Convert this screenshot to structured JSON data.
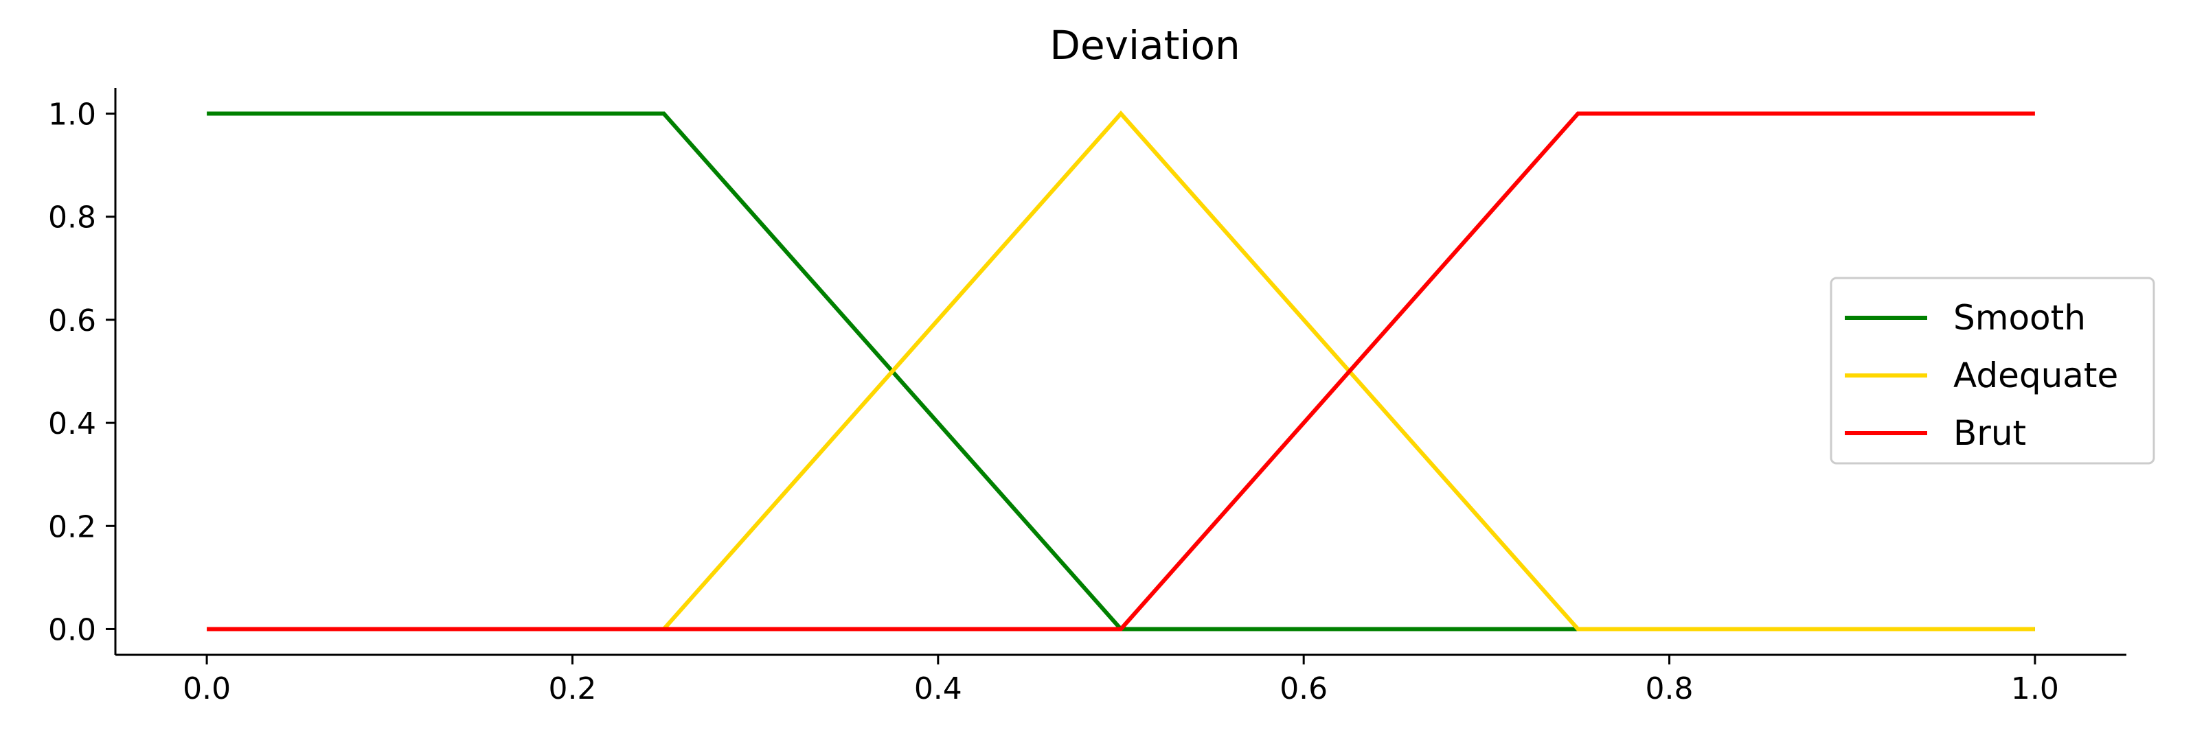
{
  "chart_data": {
    "type": "line",
    "title": "Deviation",
    "xlabel": "",
    "ylabel": "",
    "xlim": [
      -0.05,
      1.05
    ],
    "ylim": [
      -0.05,
      1.05
    ],
    "xticks": [
      0.0,
      0.2,
      0.4,
      0.6,
      0.8,
      1.0
    ],
    "xtick_labels": [
      "0.0",
      "0.2",
      "0.4",
      "0.6",
      "0.8",
      "1.0"
    ],
    "yticks": [
      0.0,
      0.2,
      0.4,
      0.6,
      0.8,
      1.0
    ],
    "ytick_labels": [
      "0.0",
      "0.2",
      "0.4",
      "0.6",
      "0.8",
      "1.0"
    ],
    "grid": false,
    "legend_position": "center-right",
    "series": [
      {
        "name": "Smooth",
        "color": "#008000",
        "x": [
          0.0,
          0.25,
          0.5,
          1.0
        ],
        "y": [
          1.0,
          1.0,
          0.0,
          0.0
        ]
      },
      {
        "name": "Adequate",
        "color": "#FFD700",
        "x": [
          0.0,
          0.25,
          0.5,
          0.75,
          1.0
        ],
        "y": [
          0.0,
          0.0,
          1.0,
          0.0,
          0.0
        ]
      },
      {
        "name": "Brut",
        "color": "#FF0000",
        "x": [
          0.0,
          0.5,
          0.75,
          1.0
        ],
        "y": [
          0.0,
          0.0,
          1.0,
          1.0
        ]
      }
    ]
  }
}
